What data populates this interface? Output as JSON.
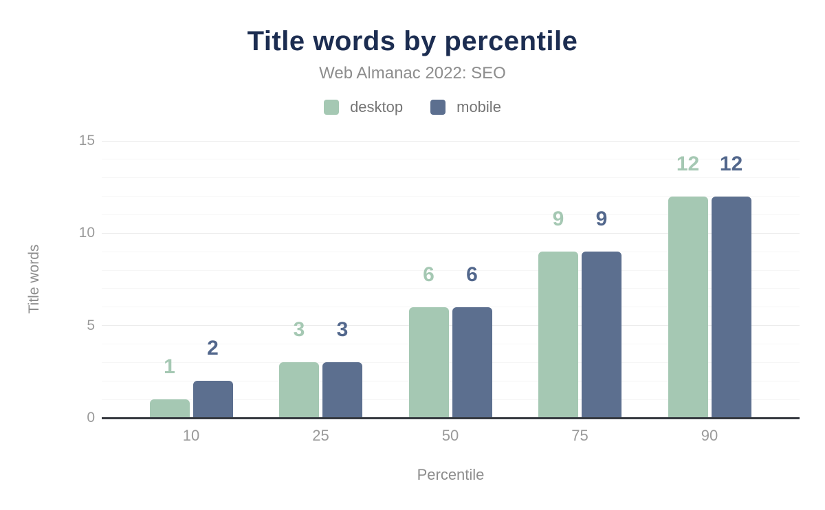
{
  "chart_data": {
    "type": "bar",
    "title": "Title words by percentile",
    "subtitle": "Web Almanac 2022: SEO",
    "xlabel": "Percentile",
    "ylabel": "Title words",
    "categories": [
      "10",
      "25",
      "50",
      "75",
      "90"
    ],
    "series": [
      {
        "name": "desktop",
        "color": "#a5c8b3",
        "label_color": "#a5c8b3",
        "values": [
          1,
          3,
          6,
          9,
          12
        ]
      },
      {
        "name": "mobile",
        "color": "#5c6f8f",
        "label_color": "#52678c",
        "values": [
          2,
          3,
          6,
          9,
          12
        ]
      }
    ],
    "ylim": [
      0,
      15
    ],
    "yticks": [
      0,
      5,
      10,
      15
    ],
    "minor_grid_step": 1,
    "grid": true,
    "legend_position": "top",
    "bar_labels_shown": true
  },
  "colors": {
    "title": "#1c2d51",
    "subtitle": "#8d8d8d",
    "tick_label": "#9a9a9a",
    "axis_title": "#8d8d8d",
    "legend_text": "#757575",
    "axis_line": "#35393f",
    "major_gridline": "#ececec",
    "minor_gridline": "#f6f6f6",
    "background": "#ffffff"
  }
}
